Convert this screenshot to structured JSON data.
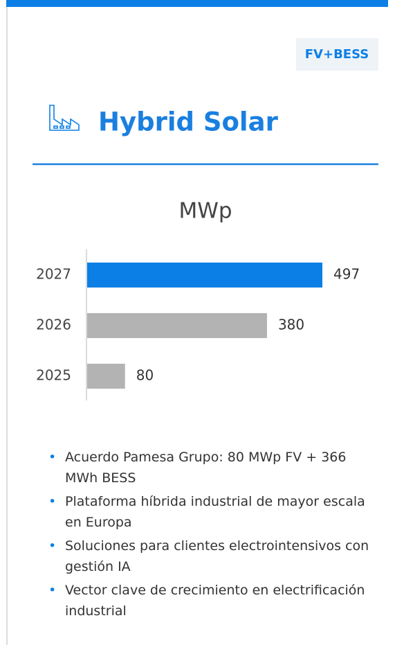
{
  "tag": "FV+BESS",
  "title": "Hybrid Solar",
  "chart_data": {
    "type": "bar",
    "orientation": "horizontal",
    "title": "MWp",
    "categories": [
      "2027",
      "2026",
      "2025"
    ],
    "values": [
      497,
      380,
      80
    ],
    "colors": [
      "#0b7fe6",
      "#b3b3b3",
      "#b3b3b3"
    ]
  },
  "bullets": [
    "Acuerdo Pamesa Grupo: 80 MWp FV + 366 MWh BESS",
    "Plataforma híbrida industrial de mayor escala en Europa",
    "Soluciones para clientes electrointensivos con gestión IA",
    "Vector clave de crecimiento en electrificación industrial"
  ]
}
